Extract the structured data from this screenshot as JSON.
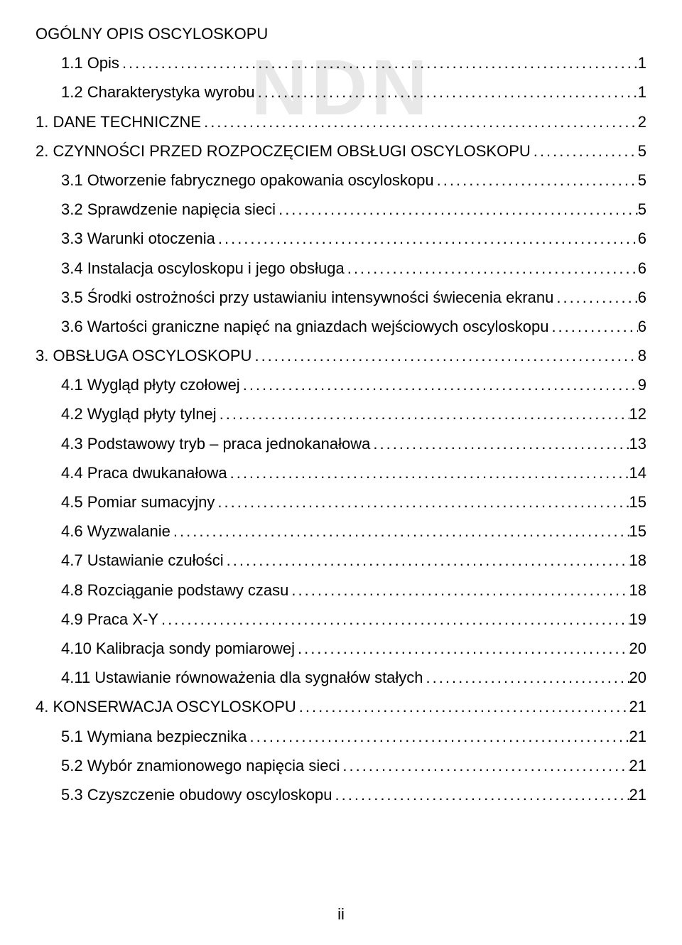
{
  "watermark_text": "NDN",
  "page_number_label": "ii",
  "toc": [
    {
      "level": 0,
      "title": "OGÓLNY OPIS OSCYLOSKOPU",
      "page": ""
    },
    {
      "level": 1,
      "title": "1.1 Opis",
      "page": "1"
    },
    {
      "level": 1,
      "title": "1.2 Charakterystyka wyrobu",
      "page": "1"
    },
    {
      "level": 0,
      "title": "1. DANE TECHNICZNE",
      "page": "2"
    },
    {
      "level": 0,
      "title": "2. CZYNNOŚCI PRZED ROZPOCZĘCIEM OBSŁUGI OSCYLOSKOPU",
      "page": "5"
    },
    {
      "level": 1,
      "title": "3.1 Otworzenie fabrycznego opakowania oscyloskopu",
      "page": "5"
    },
    {
      "level": 1,
      "title": "3.2 Sprawdzenie napięcia sieci",
      "page": "5"
    },
    {
      "level": 1,
      "title": "3.3 Warunki otoczenia",
      "page": "6"
    },
    {
      "level": 1,
      "title": "3.4 Instalacja oscyloskopu i jego obsługa",
      "page": "6"
    },
    {
      "level": 1,
      "title": "3.5 Środki ostrożności przy ustawianiu intensywności świecenia ekranu",
      "page": "6"
    },
    {
      "level": 1,
      "title": "3.6 Wartości graniczne napięć na gniazdach wejściowych oscyloskopu",
      "page": "6"
    },
    {
      "level": 0,
      "title": "3. OBSŁUGA OSCYLOSKOPU",
      "page": "8"
    },
    {
      "level": 1,
      "title": "4.1 Wygląd płyty czołowej",
      "page": "9"
    },
    {
      "level": 1,
      "title": "4.2 Wygląd płyty tylnej",
      "page": "12"
    },
    {
      "level": 1,
      "title": "4.3 Podstawowy tryb – praca jednokanałowa",
      "page": "13"
    },
    {
      "level": 1,
      "title": "4.4 Praca dwukanałowa",
      "page": "14"
    },
    {
      "level": 1,
      "title": "4.5 Pomiar sumacyjny",
      "page": "15"
    },
    {
      "level": 1,
      "title": "4.6 Wyzwalanie",
      "page": "15"
    },
    {
      "level": 1,
      "title": "4.7 Ustawianie czułości",
      "page": "18"
    },
    {
      "level": 1,
      "title": "4.8 Rozciąganie podstawy czasu",
      "page": "18"
    },
    {
      "level": 1,
      "title": "4.9 Praca X-Y",
      "page": "19"
    },
    {
      "level": 1,
      "title": "4.10 Kalibracja sondy pomiarowej",
      "page": "20"
    },
    {
      "level": 1,
      "title": "4.11 Ustawianie równoważenia dla sygnałów stałych",
      "page": "20"
    },
    {
      "level": 0,
      "title": "4. KONSERWACJA OSCYLOSKOPU",
      "page": "21"
    },
    {
      "level": 1,
      "title": "5.1 Wymiana bezpiecznika",
      "page": "21"
    },
    {
      "level": 1,
      "title": "5.2 Wybór znamionowego napięcia sieci",
      "page": "21"
    },
    {
      "level": 1,
      "title": "5.3 Czyszczenie obudowy oscyloskopu",
      "page": "21"
    }
  ],
  "colors": {
    "background": "#ffffff",
    "text": "#000000",
    "watermark": "#e8e8e8"
  },
  "typography": {
    "font_family": "Arial",
    "entry_fontsize": 22,
    "watermark_fontsize": 110
  }
}
